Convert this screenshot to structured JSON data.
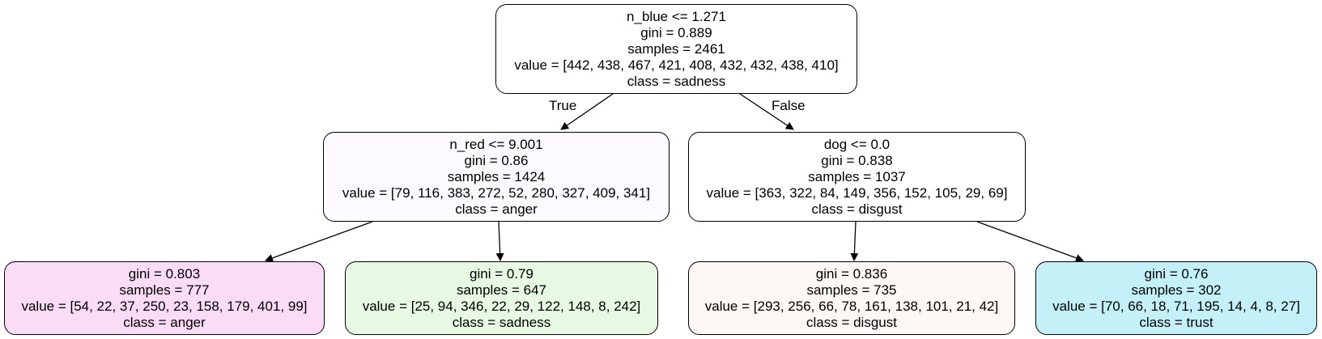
{
  "tree": {
    "nodes": [
      {
        "id": "root",
        "split": "n_blue <= 1.271",
        "gini": "gini = 0.889",
        "samples": "samples = 2461",
        "value": "value = [442, 438, 467, 421, 408, 432, 432, 438, 410]",
        "class": "class = sadness",
        "fill": "#ffffff"
      },
      {
        "id": "left",
        "split": "n_red <= 9.001",
        "gini": "gini = 0.86",
        "samples": "samples = 1424",
        "value": "value = [79, 116, 383, 272, 52, 280, 327, 409, 341]",
        "class": "class = anger",
        "fill": "#fcf9ff"
      },
      {
        "id": "right",
        "split": "dog <= 0.0",
        "gini": "gini = 0.838",
        "samples": "samples = 1037",
        "value": "value = [363, 322, 84, 149, 356, 152, 105, 29, 69]",
        "class": "class = disgust",
        "fill": "#ffffff"
      },
      {
        "id": "leaf1",
        "gini": "gini = 0.803",
        "samples": "samples = 777",
        "value": "value = [54, 22, 37, 250, 23, 158, 179, 401, 99]",
        "class": "class = anger",
        "fill": "#fadcf6"
      },
      {
        "id": "leaf2",
        "gini": "gini = 0.79",
        "samples": "samples = 647",
        "value": "value = [25, 94, 346, 22, 29, 122, 148, 8, 242]",
        "class": "class = sadness",
        "fill": "#e8f9e3"
      },
      {
        "id": "leaf3",
        "gini": "gini = 0.836",
        "samples": "samples = 735",
        "value": "value = [293, 256, 66, 78, 161, 138, 101, 21, 42]",
        "class": "class = disgust",
        "fill": "#fdf8f5"
      },
      {
        "id": "leaf4",
        "gini": "gini = 0.76",
        "samples": "samples = 302",
        "value": "value = [70, 66, 18, 71, 195, 14, 4, 8, 27]",
        "class": "class = trust",
        "fill": "#c3f1f7"
      }
    ],
    "edges": [
      {
        "from": "root",
        "to": "left",
        "label": "True"
      },
      {
        "from": "root",
        "to": "right",
        "label": "False"
      },
      {
        "from": "left",
        "to": "leaf1",
        "label": ""
      },
      {
        "from": "left",
        "to": "leaf2",
        "label": ""
      },
      {
        "from": "right",
        "to": "leaf3",
        "label": ""
      },
      {
        "from": "right",
        "to": "leaf4",
        "label": ""
      }
    ]
  }
}
